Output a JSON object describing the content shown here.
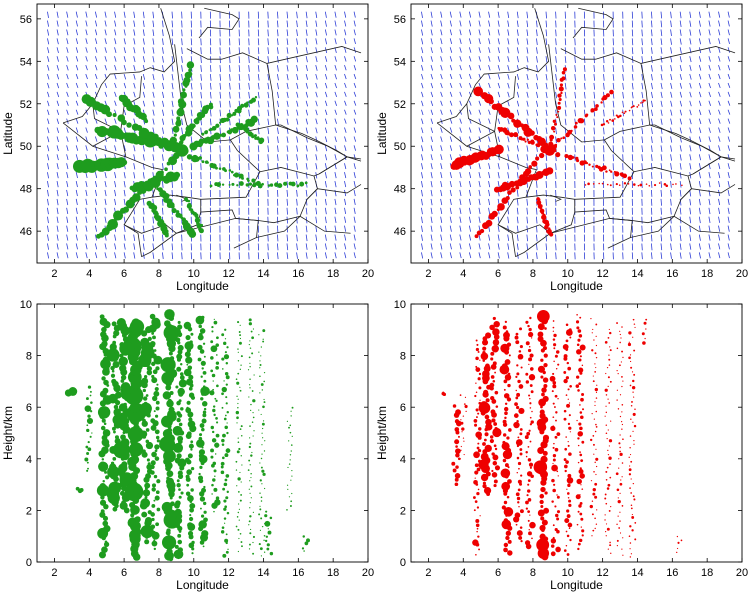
{
  "figure": {
    "panels": [
      {
        "id": "map-green",
        "type": "scatter",
        "kind": "map",
        "color": "#1e9c1e",
        "xlabel": "Longitude",
        "ylabel": "Latitude",
        "xlim": [
          1,
          20
        ],
        "ylim": [
          44.5,
          56.7
        ],
        "xticks": [
          2,
          4,
          6,
          8,
          10,
          12,
          14,
          16,
          18,
          20
        ],
        "yticks": [
          46,
          48,
          50,
          52,
          54,
          56
        ]
      },
      {
        "id": "map-red",
        "type": "scatter",
        "kind": "map",
        "color": "#ee0000",
        "xlabel": "Longitude",
        "ylabel": "Latitude",
        "xlim": [
          1,
          20
        ],
        "ylim": [
          44.5,
          56.7
        ],
        "xticks": [
          2,
          4,
          6,
          8,
          10,
          12,
          14,
          16,
          18,
          20
        ],
        "yticks": [
          46,
          48,
          50,
          52,
          54,
          56
        ]
      },
      {
        "id": "height-green",
        "type": "scatter",
        "kind": "profile",
        "color": "#1e9c1e",
        "xlabel": "Longitude",
        "ylabel": "Height/km",
        "xlim": [
          1,
          20
        ],
        "ylim": [
          0,
          10
        ],
        "xticks": [
          2,
          4,
          6,
          8,
          10,
          12,
          14,
          16,
          18,
          20
        ],
        "yticks": [
          0,
          2,
          4,
          6,
          8,
          10
        ]
      },
      {
        "id": "height-red",
        "type": "scatter",
        "kind": "profile",
        "color": "#ee0000",
        "xlabel": "Longitude",
        "ylabel": "Height/km",
        "xlim": [
          1,
          20
        ],
        "ylim": [
          0,
          10
        ],
        "xticks": [
          2,
          4,
          6,
          8,
          10,
          12,
          14,
          16,
          18,
          20
        ],
        "yticks": [
          0,
          2,
          4,
          6,
          8,
          10
        ]
      }
    ]
  },
  "chart_data": [
    {
      "type": "scatter",
      "title": "",
      "xlabel": "Longitude",
      "ylabel": "Latitude",
      "xlim": [
        1,
        20
      ],
      "ylim": [
        44.5,
        56.7
      ],
      "overlay": "wind vectors and country borders",
      "series": [
        {
          "name": "green flight tracks",
          "tracks": [
            {
              "from": [
                3.5,
                49.0
              ],
              "to": [
                6.0,
                49.3
              ],
              "size": 5
            },
            {
              "from": [
                4.5,
                50.8
              ],
              "to": [
                9.5,
                49.8
              ],
              "size": 5
            },
            {
              "from": [
                3.8,
                52.2
              ],
              "to": [
                10.0,
                49.4
              ],
              "size": 4
            },
            {
              "from": [
                4.5,
                45.7
              ],
              "to": [
                9.0,
                49.5
              ],
              "size": 4
            },
            {
              "from": [
                8.8,
                50.0
              ],
              "to": [
                9.8,
                53.8
              ],
              "size": 3
            },
            {
              "from": [
                9.2,
                50.2
              ],
              "to": [
                11.0,
                52.0
              ],
              "size": 3
            },
            {
              "from": [
                10.0,
                50.0
              ],
              "to": [
                13.5,
                51.2
              ],
              "size": 3
            },
            {
              "from": [
                10.0,
                49.5
              ],
              "to": [
                13.7,
                48.2
              ],
              "size": 2
            },
            {
              "from": [
                13.5,
                52.3
              ],
              "to": [
                10.5,
                50.5
              ],
              "size": 2
            },
            {
              "from": [
                12.6,
                51.0
              ],
              "to": [
                14.0,
                50.2
              ],
              "size": 2
            },
            {
              "from": [
                6.5,
                48.0
              ],
              "to": [
                9.0,
                48.6
              ],
              "size": 4
            },
            {
              "from": [
                8.0,
                48.0
              ],
              "to": [
                10.0,
                45.8
              ],
              "size": 3
            },
            {
              "from": [
                11.0,
                48.2
              ],
              "to": [
                16.5,
                48.2
              ],
              "size": 2
            },
            {
              "from": [
                7.5,
                47.3
              ],
              "to": [
                8.5,
                45.8
              ],
              "size": 3
            },
            {
              "from": [
                9.6,
                47.5
              ],
              "to": [
                10.5,
                46.0
              ],
              "size": 2
            },
            {
              "from": [
                5.8,
                52.3
              ],
              "to": [
                7.3,
                51.2
              ],
              "size": 3
            }
          ]
        }
      ]
    },
    {
      "type": "scatter",
      "title": "",
      "xlabel": "Longitude",
      "ylabel": "Latitude",
      "xlim": [
        1,
        20
      ],
      "ylim": [
        44.5,
        56.7
      ],
      "overlay": "wind vectors and country borders",
      "series": [
        {
          "name": "red flight tracks",
          "tracks": [
            {
              "from": [
                3.5,
                49.1
              ],
              "to": [
                6.0,
                49.8
              ],
              "size": 4
            },
            {
              "from": [
                4.8,
                52.6
              ],
              "to": [
                9.4,
                49.6
              ],
              "size": 4
            },
            {
              "from": [
                4.8,
                45.7
              ],
              "to": [
                8.6,
                49.8
              ],
              "size": 3
            },
            {
              "from": [
                9.0,
                49.8
              ],
              "to": [
                9.8,
                53.6
              ],
              "size": 2
            },
            {
              "from": [
                9.2,
                50.0
              ],
              "to": [
                12.5,
                52.5
              ],
              "size": 2
            },
            {
              "from": [
                10.0,
                49.5
              ],
              "to": [
                13.5,
                48.5
              ],
              "size": 2
            },
            {
              "from": [
                12.0,
                51.0
              ],
              "to": [
                14.5,
                52.2
              ],
              "size": 1
            },
            {
              "from": [
                11.0,
                48.2
              ],
              "to": [
                16.5,
                48.2
              ],
              "size": 1
            },
            {
              "from": [
                6.0,
                48.0
              ],
              "to": [
                9.0,
                48.8
              ],
              "size": 3
            },
            {
              "from": [
                8.3,
                47.5
              ],
              "to": [
                9.0,
                45.8
              ],
              "size": 2
            },
            {
              "from": [
                6.0,
                50.8
              ],
              "to": [
                8.5,
                50.0
              ],
              "size": 2
            }
          ]
        }
      ]
    },
    {
      "type": "scatter",
      "title": "",
      "xlabel": "Longitude",
      "ylabel": "Height/km",
      "xlim": [
        1,
        20
      ],
      "ylim": [
        0,
        10
      ],
      "series": [
        {
          "name": "green",
          "columns": [
            {
              "x": 2.9,
              "y0": 6.5,
              "y1": 6.6,
              "size": 6
            },
            {
              "x": 3.4,
              "y0": 2.8,
              "y1": 2.8,
              "size": 3
            },
            {
              "x": 4.0,
              "y0": 3.5,
              "y1": 6.8,
              "size": 2
            },
            {
              "x": 4.9,
              "y0": 0.3,
              "y1": 9.5,
              "size": 4
            },
            {
              "x": 5.5,
              "y0": 2.0,
              "y1": 9.2,
              "size": 4
            },
            {
              "x": 6.0,
              "y0": 2.0,
              "y1": 9.3,
              "size": 5
            },
            {
              "x": 6.6,
              "y0": 0.2,
              "y1": 9.3,
              "size": 6
            },
            {
              "x": 7.3,
              "y0": 0.8,
              "y1": 9.0,
              "size": 4
            },
            {
              "x": 7.8,
              "y0": 0.5,
              "y1": 9.5,
              "size": 3
            },
            {
              "x": 8.6,
              "y0": 0.1,
              "y1": 9.6,
              "size": 5
            },
            {
              "x": 9.2,
              "y0": 0.3,
              "y1": 9.3,
              "size": 3
            },
            {
              "x": 9.8,
              "y0": 0.3,
              "y1": 9.2,
              "size": 3
            },
            {
              "x": 10.5,
              "y0": 0.6,
              "y1": 9.5,
              "size": 3
            },
            {
              "x": 11.2,
              "y0": 2.0,
              "y1": 9.4,
              "size": 2
            },
            {
              "x": 11.8,
              "y0": 0.2,
              "y1": 9.0,
              "size": 2
            },
            {
              "x": 12.6,
              "y0": 0.4,
              "y1": 9.3,
              "size": 1
            },
            {
              "x": 13.3,
              "y0": 0.3,
              "y1": 9.4,
              "size": 1
            },
            {
              "x": 13.9,
              "y0": 0.2,
              "y1": 9.0,
              "size": 1
            },
            {
              "x": 14.3,
              "y0": 0.3,
              "y1": 2.0,
              "size": 2
            },
            {
              "x": 15.5,
              "y0": 2.0,
              "y1": 6.0,
              "size": 1
            },
            {
              "x": 16.4,
              "y0": 0.4,
              "y1": 1.0,
              "size": 2
            }
          ]
        }
      ]
    },
    {
      "type": "scatter",
      "title": "",
      "xlabel": "Longitude",
      "ylabel": "Height/km",
      "xlim": [
        1,
        20
      ],
      "ylim": [
        0,
        10
      ],
      "series": [
        {
          "name": "red",
          "columns": [
            {
              "x": 3.0,
              "y0": 6.5,
              "y1": 6.6,
              "size": 2
            },
            {
              "x": 3.6,
              "y0": 3.0,
              "y1": 6.0,
              "size": 3
            },
            {
              "x": 4.0,
              "y0": 4.0,
              "y1": 6.5,
              "size": 1
            },
            {
              "x": 4.8,
              "y0": 0.3,
              "y1": 8.6,
              "size": 2
            },
            {
              "x": 5.3,
              "y0": 2.6,
              "y1": 8.8,
              "size": 4
            },
            {
              "x": 5.8,
              "y0": 3.0,
              "y1": 9.4,
              "size": 3
            },
            {
              "x": 6.5,
              "y0": 0.3,
              "y1": 9.3,
              "size": 3
            },
            {
              "x": 7.2,
              "y0": 0.8,
              "y1": 9.0,
              "size": 2
            },
            {
              "x": 7.8,
              "y0": 0.6,
              "y1": 9.5,
              "size": 2
            },
            {
              "x": 8.6,
              "y0": 0.2,
              "y1": 9.5,
              "size": 4
            },
            {
              "x": 9.3,
              "y0": 0.3,
              "y1": 9.3,
              "size": 2
            },
            {
              "x": 10.0,
              "y0": 0.3,
              "y1": 9.2,
              "size": 2
            },
            {
              "x": 10.7,
              "y0": 0.5,
              "y1": 9.6,
              "size": 2
            },
            {
              "x": 11.5,
              "y0": 1.0,
              "y1": 9.4,
              "size": 1
            },
            {
              "x": 12.3,
              "y0": 0.3,
              "y1": 9.0,
              "size": 1
            },
            {
              "x": 13.0,
              "y0": 0.3,
              "y1": 9.3,
              "size": 1
            },
            {
              "x": 13.7,
              "y0": 0.2,
              "y1": 9.4,
              "size": 1
            },
            {
              "x": 14.5,
              "y0": 8.5,
              "y1": 9.4,
              "size": 2
            },
            {
              "x": 16.4,
              "y0": 0.4,
              "y1": 1.0,
              "size": 1
            }
          ]
        }
      ]
    }
  ]
}
